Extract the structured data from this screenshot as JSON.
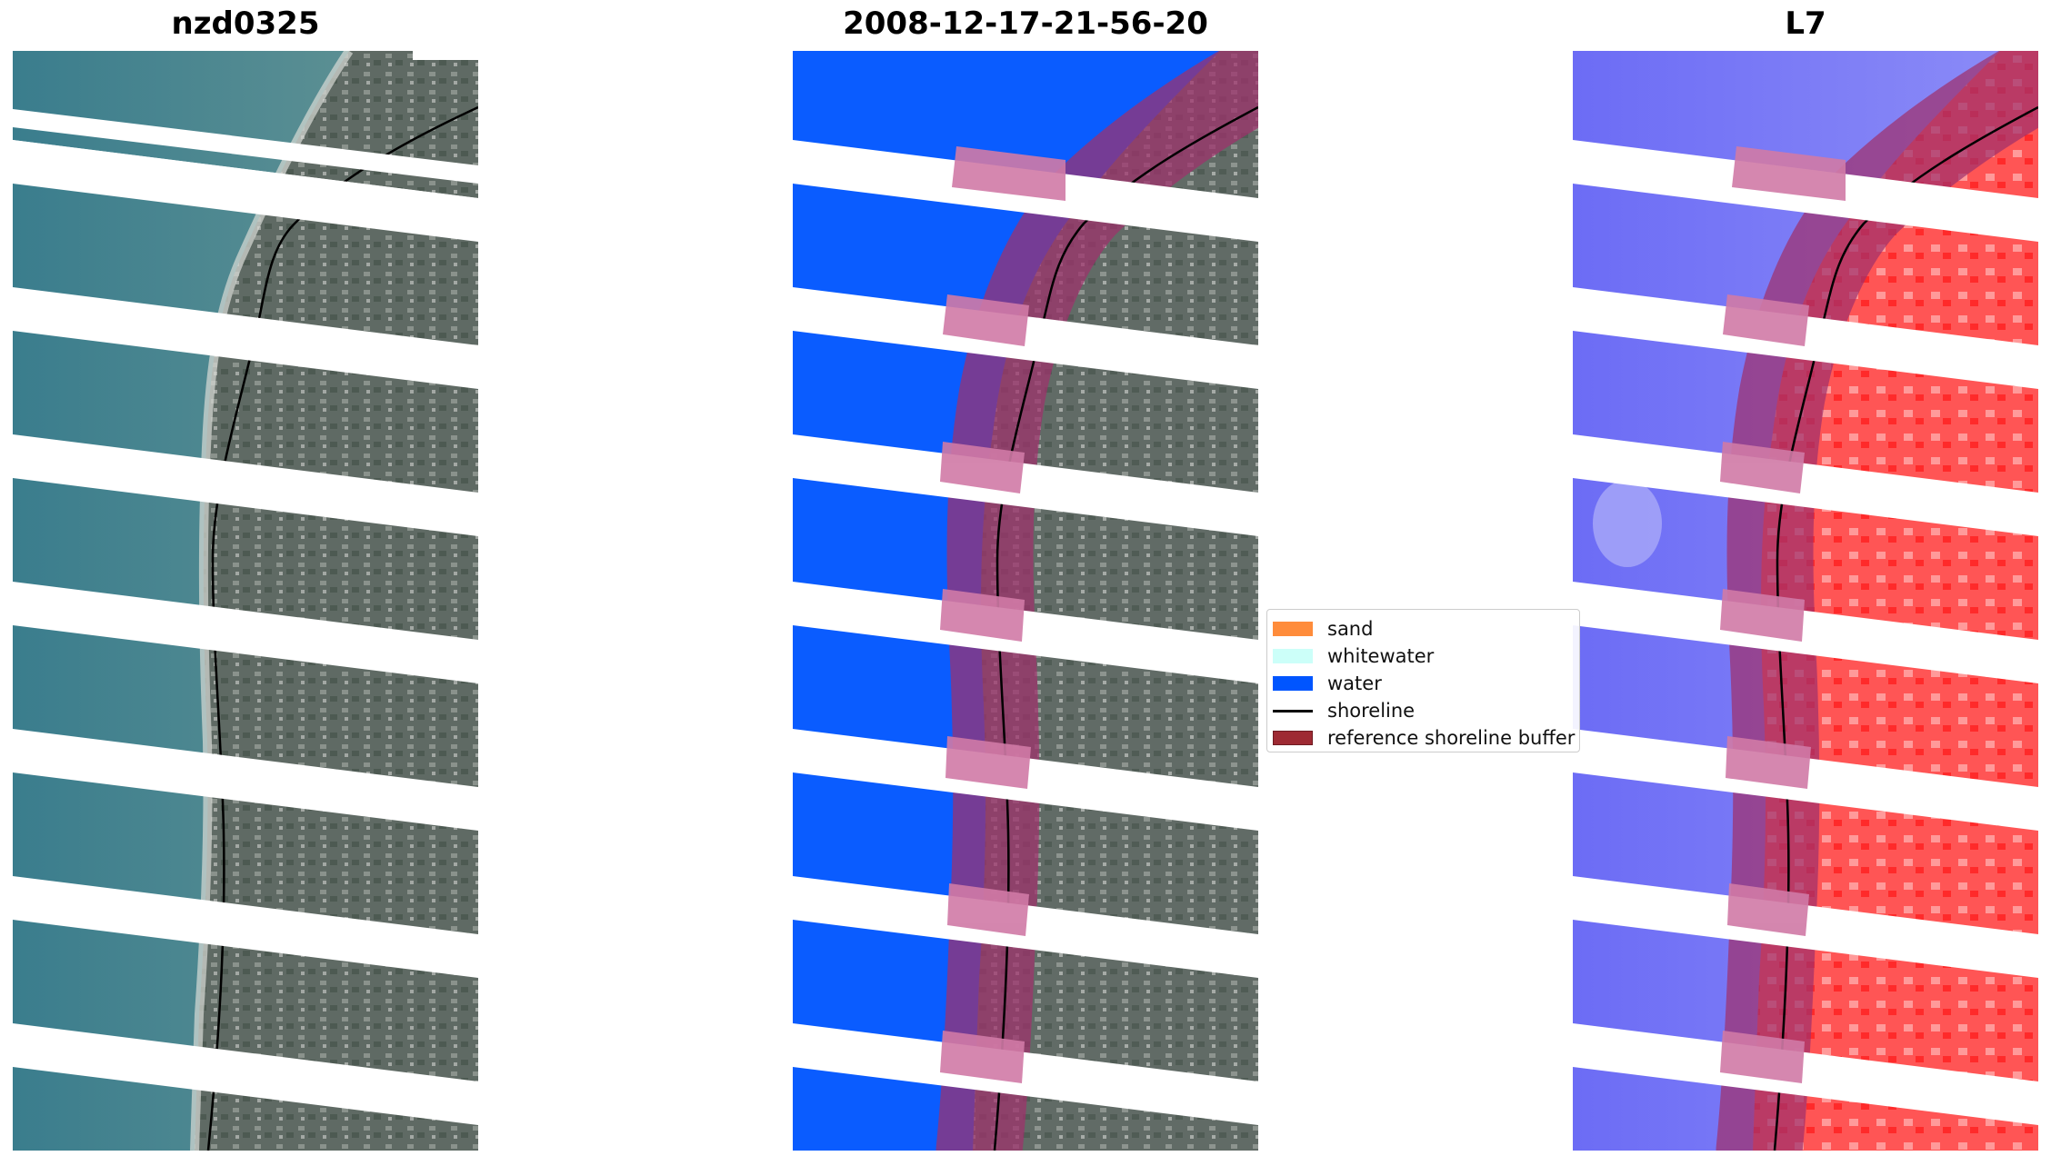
{
  "panels": {
    "left_title": "nzd0325",
    "center_title": "2008-12-17-21-56-20",
    "right_title": "L7"
  },
  "legend": {
    "items": [
      {
        "label": "sand",
        "color": "#ff8c3b",
        "type": "patch"
      },
      {
        "label": "whitewater",
        "color": "#ccfff9",
        "type": "patch"
      },
      {
        "label": "water",
        "color": "#0055ff",
        "type": "patch"
      },
      {
        "label": "shoreline",
        "color": "#000000",
        "type": "line"
      },
      {
        "label": "reference shoreline buffer",
        "color": "#9e2a33",
        "type": "patch"
      }
    ]
  },
  "colors": {
    "sea_rgb": "#3c7f8e",
    "land_rgb": "#5e6963",
    "water_class": "#0a5cff",
    "buffer_overlay": "#a0306c",
    "l7_water": "#6f6ff7",
    "l7_land": "#ff5a5a"
  }
}
